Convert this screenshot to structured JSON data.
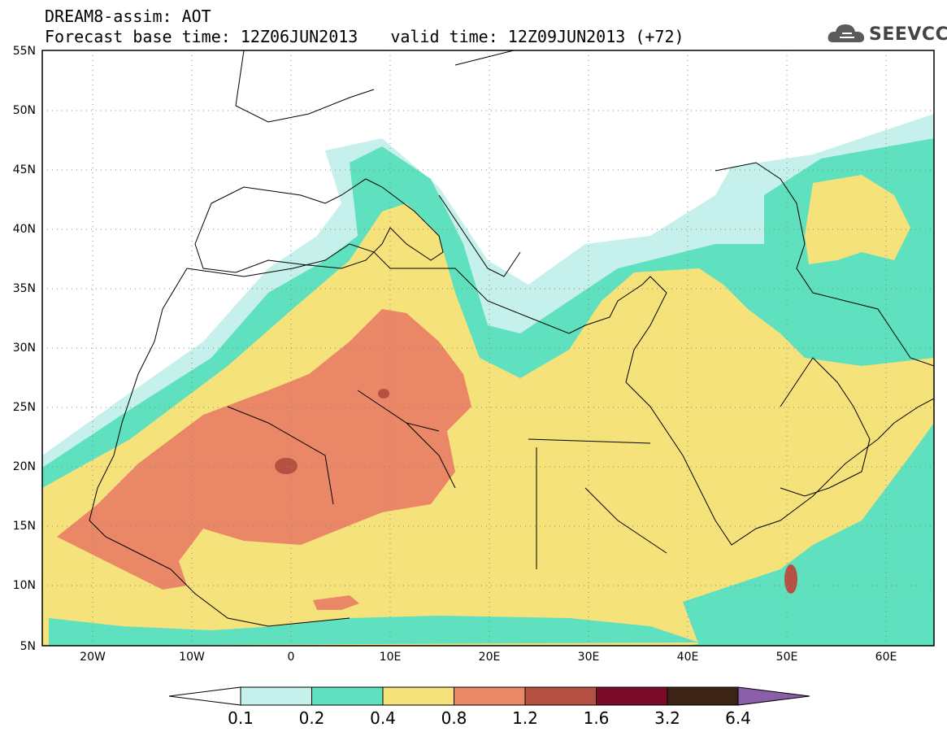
{
  "header": {
    "title_line1": "DREAM8-assim: AOT",
    "base_time": "Forecast base time: 12Z06JUN2013",
    "valid_time": "valid time: 12Z09JUN2013 (+72)",
    "logo_text": "SEEVCCC"
  },
  "axes": {
    "lat_labels": [
      "55N",
      "50N",
      "45N",
      "40N",
      "35N",
      "30N",
      "25N",
      "20N",
      "15N",
      "10N",
      "5N"
    ],
    "lon_labels": [
      "20W",
      "10W",
      "0",
      "10E",
      "20E",
      "30E",
      "40E",
      "50E",
      "60E"
    ]
  },
  "colorbar": {
    "labels": [
      "0.1",
      "0.2",
      "0.4",
      "0.8",
      "1.2",
      "1.6",
      "3.2",
      "6.4"
    ],
    "colors": [
      "#ffffff",
      "#c6f0eb",
      "#5fe0bf",
      "#f6e27a",
      "#e98766",
      "#b45142",
      "#7c0b2a",
      "#3b2415",
      "#8a5fa8"
    ]
  },
  "map_colors": {
    "c01": "#c6f0eb",
    "c02": "#5fe0bf",
    "c04": "#f6e27a",
    "c08": "#e98766",
    "c12": "#b45142"
  }
}
